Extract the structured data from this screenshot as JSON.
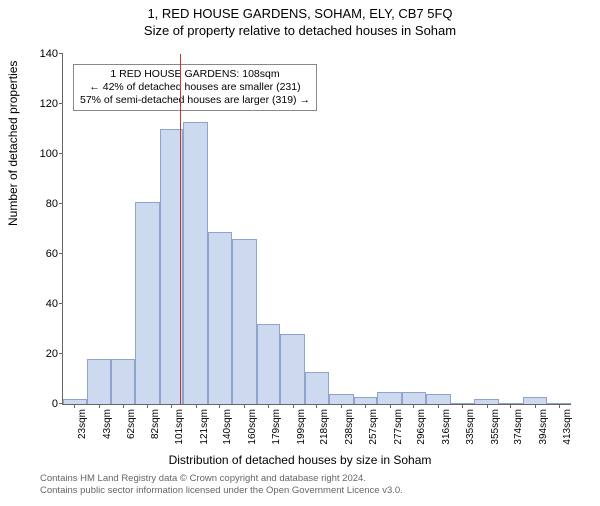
{
  "title_main": "1, RED HOUSE GARDENS, SOHAM, ELY, CB7 5FQ",
  "title_sub": "Size of property relative to detached houses in Soham",
  "y_axis_label": "Number of detached properties",
  "x_axis_label": "Distribution of detached houses by size in Soham",
  "chart": {
    "type": "histogram",
    "ylim": [
      0,
      140
    ],
    "ytick_step": 20,
    "x_range_sqm": [
      14,
      423
    ],
    "x_ticks": [
      "23sqm",
      "43sqm",
      "62sqm",
      "82sqm",
      "101sqm",
      "121sqm",
      "140sqm",
      "160sqm",
      "179sqm",
      "199sqm",
      "218sqm",
      "238sqm",
      "257sqm",
      "277sqm",
      "296sqm",
      "316sqm",
      "335sqm",
      "355sqm",
      "374sqm",
      "394sqm",
      "413sqm"
    ],
    "x_tick_values": [
      23,
      43,
      62,
      82,
      101,
      121,
      140,
      160,
      179,
      199,
      218,
      238,
      257,
      277,
      296,
      316,
      335,
      355,
      374,
      394,
      413
    ],
    "bars": [
      {
        "start": 14,
        "end": 33,
        "value": 2
      },
      {
        "start": 33,
        "end": 53,
        "value": 18
      },
      {
        "start": 53,
        "end": 72,
        "value": 18
      },
      {
        "start": 72,
        "end": 92,
        "value": 81
      },
      {
        "start": 92,
        "end": 111,
        "value": 110
      },
      {
        "start": 111,
        "end": 131,
        "value": 113
      },
      {
        "start": 131,
        "end": 150,
        "value": 69
      },
      {
        "start": 150,
        "end": 170,
        "value": 66
      },
      {
        "start": 170,
        "end": 189,
        "value": 32
      },
      {
        "start": 189,
        "end": 209,
        "value": 28
      },
      {
        "start": 209,
        "end": 228,
        "value": 13
      },
      {
        "start": 228,
        "end": 248,
        "value": 4
      },
      {
        "start": 248,
        "end": 267,
        "value": 3
      },
      {
        "start": 267,
        "end": 287,
        "value": 5
      },
      {
        "start": 287,
        "end": 306,
        "value": 5
      },
      {
        "start": 306,
        "end": 326,
        "value": 4
      },
      {
        "start": 326,
        "end": 345,
        "value": 0
      },
      {
        "start": 345,
        "end": 365,
        "value": 2
      },
      {
        "start": 365,
        "end": 384,
        "value": 0
      },
      {
        "start": 384,
        "end": 404,
        "value": 3
      },
      {
        "start": 404,
        "end": 423,
        "value": 0
      }
    ],
    "bar_fill": "#cdd9ef",
    "bar_stroke": "#8fa4cc",
    "reference_line": {
      "x_value": 108,
      "color": "#cc3333"
    },
    "axis_color": "#666666",
    "background_color": "#ffffff"
  },
  "info_box": {
    "lines": [
      "1 RED HOUSE GARDENS: 108sqm",
      "← 42% of detached houses are smaller (231)",
      "57% of semi-detached houses are larger (319) →"
    ]
  },
  "footnote1": "Contains HM Land Registry data © Crown copyright and database right 2024.",
  "footnote2": "Contains public sector information licensed under the Open Government Licence v3.0."
}
